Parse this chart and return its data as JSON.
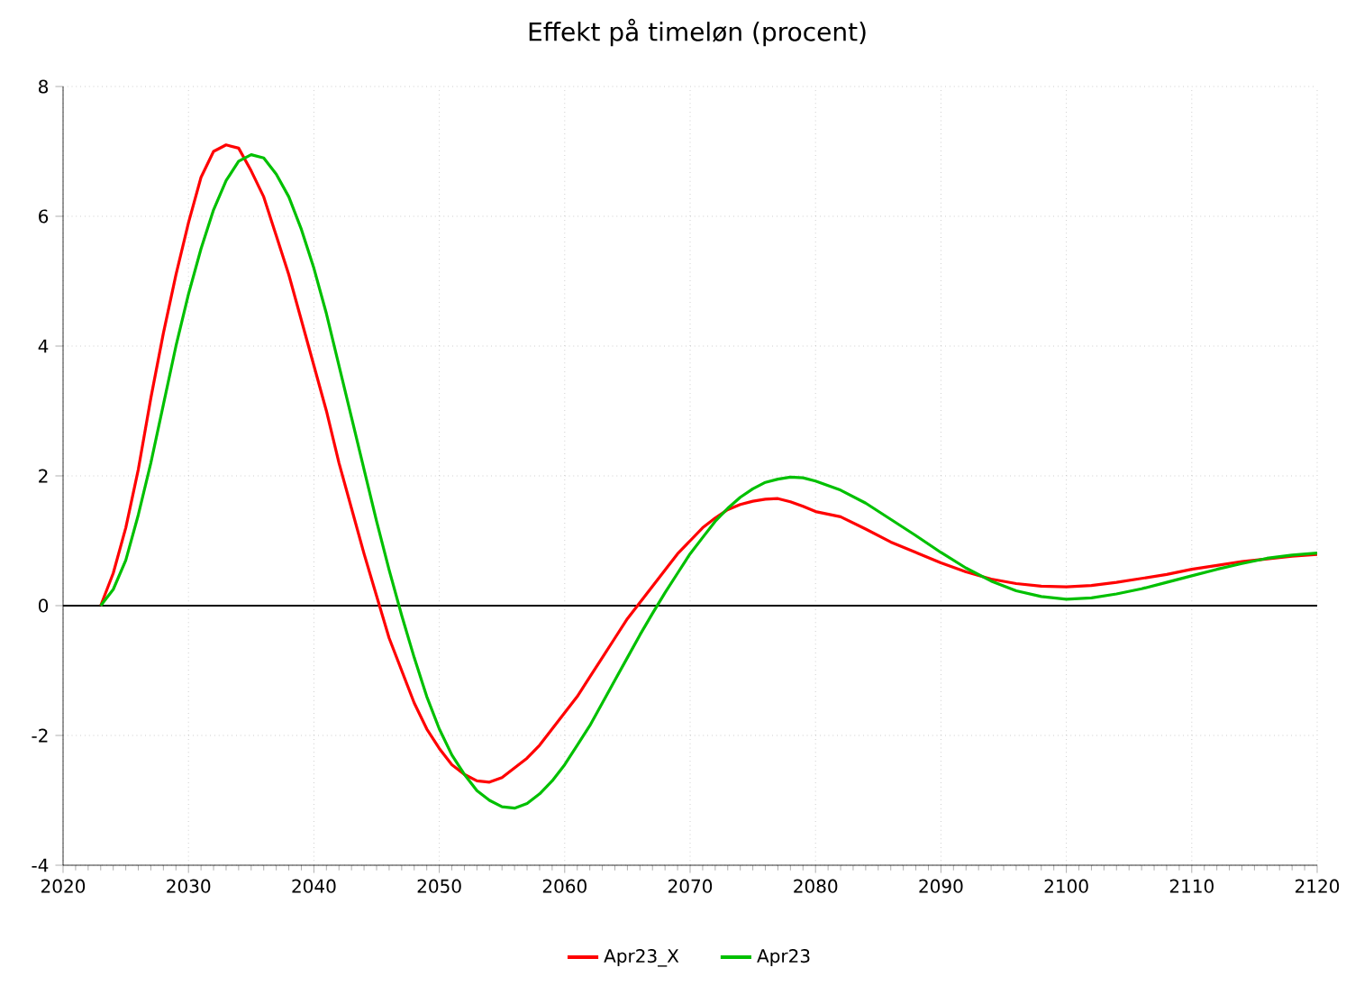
{
  "chart_data": {
    "type": "line",
    "title": "Effekt på timeløn (procent)",
    "x": [
      2023,
      2024,
      2025,
      2026,
      2027,
      2028,
      2029,
      2030,
      2031,
      2032,
      2033,
      2034,
      2035,
      2036,
      2037,
      2038,
      2039,
      2040,
      2041,
      2042,
      2043,
      2044,
      2045,
      2046,
      2047,
      2048,
      2049,
      2050,
      2051,
      2052,
      2053,
      2054,
      2055,
      2056,
      2057,
      2058,
      2059,
      2060,
      2061,
      2062,
      2063,
      2064,
      2065,
      2066,
      2067,
      2068,
      2069,
      2070,
      2071,
      2072,
      2073,
      2074,
      2075,
      2076,
      2077,
      2078,
      2079,
      2080,
      2082,
      2084,
      2086,
      2088,
      2090,
      2092,
      2094,
      2096,
      2098,
      2100,
      2102,
      2104,
      2106,
      2108,
      2110,
      2112,
      2114,
      2116,
      2118,
      2120
    ],
    "series": [
      {
        "name": "Apr23_X",
        "color": "#ff0000",
        "values": [
          0,
          0.5,
          1.2,
          2.1,
          3.2,
          4.2,
          5.1,
          5.9,
          6.6,
          7.0,
          7.1,
          7.05,
          6.7,
          6.3,
          5.7,
          5.1,
          4.4,
          3.7,
          3.0,
          2.2,
          1.5,
          0.8,
          0.15,
          -0.5,
          -1.0,
          -1.5,
          -1.9,
          -2.2,
          -2.45,
          -2.6,
          -2.7,
          -2.72,
          -2.65,
          -2.5,
          -2.35,
          -2.15,
          -1.9,
          -1.65,
          -1.4,
          -1.1,
          -0.8,
          -0.5,
          -0.2,
          0.05,
          0.3,
          0.55,
          0.8,
          1.0,
          1.2,
          1.35,
          1.48,
          1.56,
          1.61,
          1.64,
          1.65,
          1.6,
          1.53,
          1.45,
          1.37,
          1.18,
          0.98,
          0.82,
          0.66,
          0.52,
          0.41,
          0.34,
          0.3,
          0.29,
          0.31,
          0.36,
          0.42,
          0.48,
          0.56,
          0.62,
          0.68,
          0.72,
          0.76,
          0.79
        ]
      },
      {
        "name": "Apr23",
        "color": "#00c000",
        "values": [
          0,
          0.25,
          0.7,
          1.4,
          2.2,
          3.1,
          4.0,
          4.8,
          5.5,
          6.1,
          6.55,
          6.85,
          6.95,
          6.9,
          6.65,
          6.3,
          5.8,
          5.2,
          4.5,
          3.7,
          2.9,
          2.1,
          1.3,
          0.55,
          -0.15,
          -0.8,
          -1.4,
          -1.9,
          -2.3,
          -2.6,
          -2.85,
          -3.0,
          -3.1,
          -3.12,
          -3.05,
          -2.9,
          -2.7,
          -2.45,
          -2.15,
          -1.85,
          -1.5,
          -1.15,
          -0.8,
          -0.45,
          -0.12,
          0.2,
          0.5,
          0.8,
          1.05,
          1.3,
          1.5,
          1.67,
          1.8,
          1.9,
          1.95,
          1.98,
          1.97,
          1.92,
          1.78,
          1.58,
          1.33,
          1.08,
          0.82,
          0.58,
          0.38,
          0.23,
          0.14,
          0.1,
          0.12,
          0.18,
          0.26,
          0.36,
          0.46,
          0.56,
          0.65,
          0.73,
          0.78,
          0.81
        ]
      }
    ],
    "xlim": [
      2020,
      2120
    ],
    "xticks": [
      2020,
      2030,
      2040,
      2050,
      2060,
      2070,
      2080,
      2090,
      2100,
      2110,
      2120
    ],
    "ylim": [
      -4,
      8
    ],
    "yticks": [
      -4,
      -2,
      0,
      2,
      4,
      6,
      8
    ],
    "ref_lines": [
      {
        "axis": "y",
        "value": 0,
        "color": "#000000"
      }
    ],
    "grid": true,
    "legend": "bottom",
    "marker": "none",
    "line_style": "solid"
  }
}
